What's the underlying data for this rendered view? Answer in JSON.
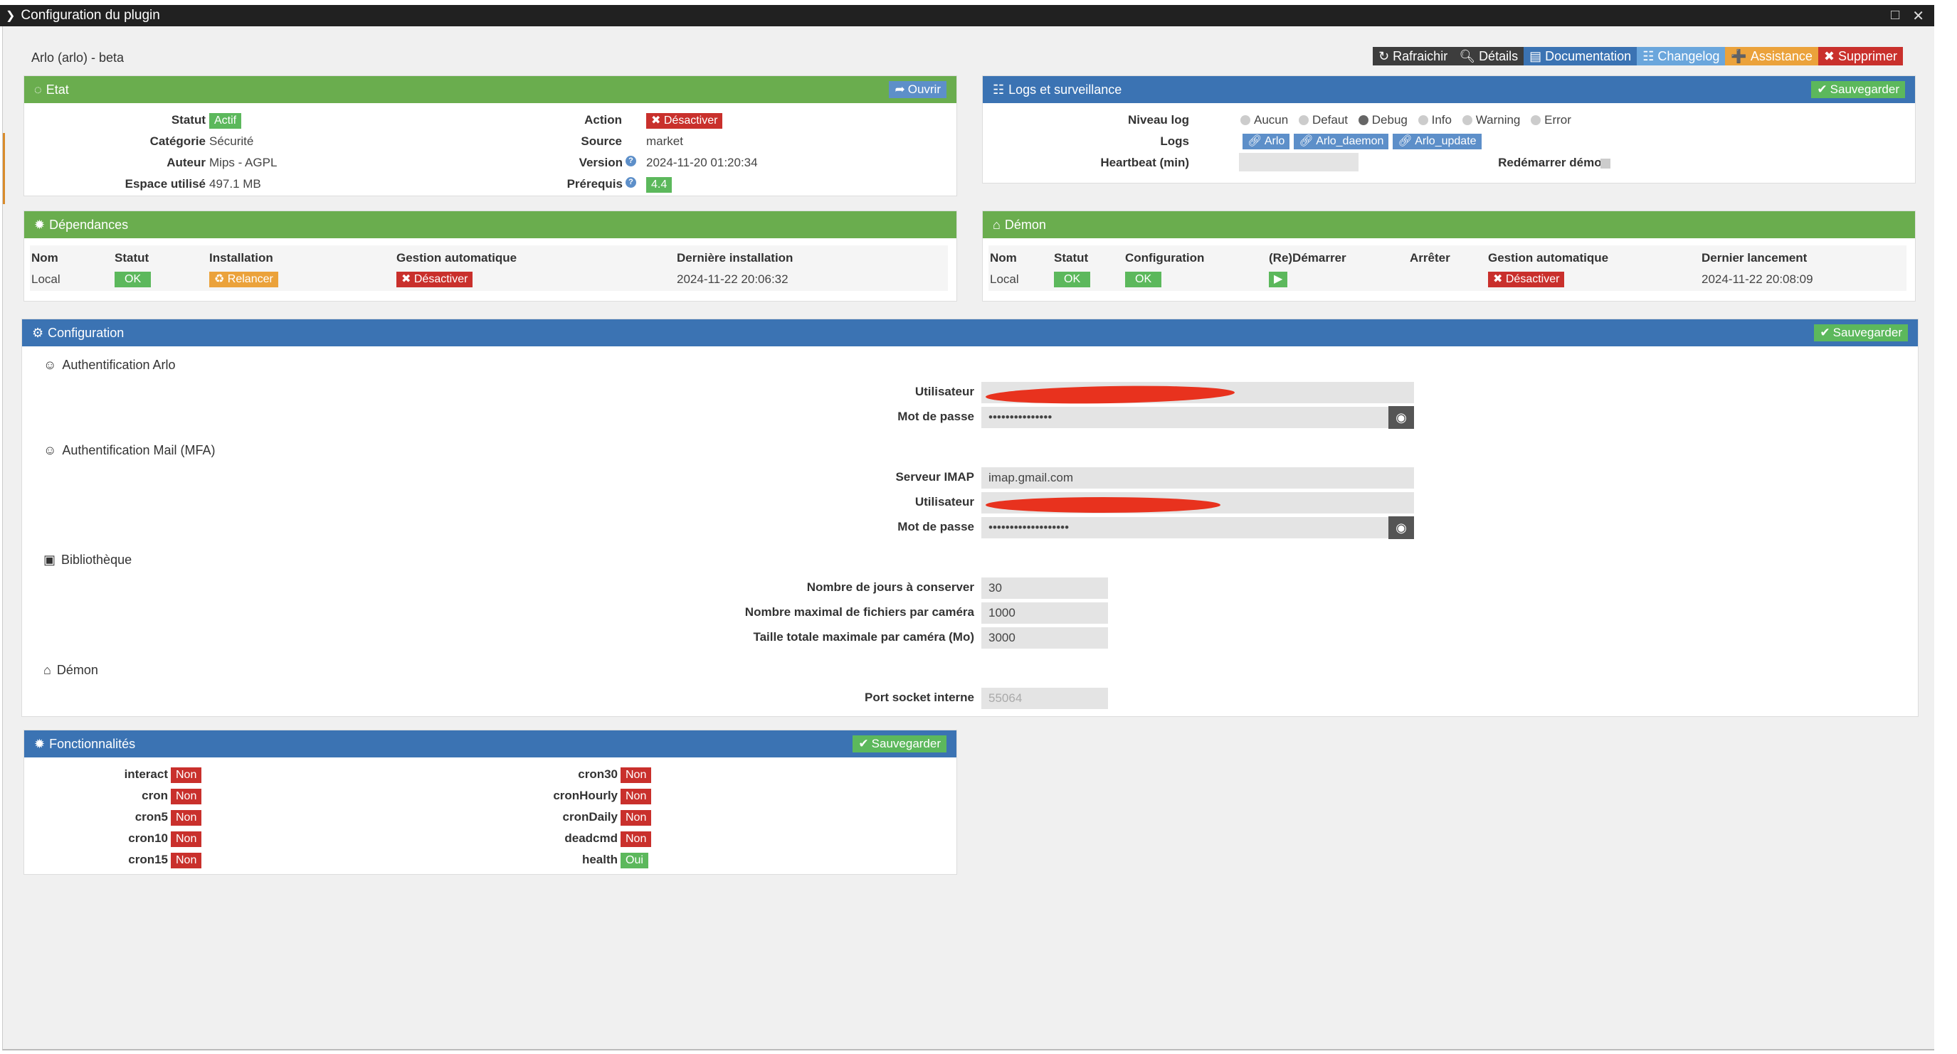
{
  "window": {
    "title": "Configuration du plugin"
  },
  "plugin": {
    "name": "Arlo (arlo) - beta"
  },
  "actions": {
    "refresh": "Rafraichir",
    "details": "Détails",
    "documentation": "Documentation",
    "changelog": "Changelog",
    "assistance": "Assistance",
    "delete": "Supprimer"
  },
  "etat": {
    "title": "Etat",
    "open_label": "Ouvrir",
    "statut_label": "Statut",
    "statut_value": "Actif",
    "categorie_label": "Catégorie",
    "categorie_value": "Sécurité",
    "auteur_label": "Auteur",
    "auteur_value": "Mips - AGPL",
    "espace_label": "Espace utilisé",
    "espace_value": "497.1 MB",
    "action_label": "Action",
    "action_value": "Désactiver",
    "source_label": "Source",
    "source_value": "market",
    "version_label": "Version",
    "version_value": "2024-11-20 01:20:34",
    "prerequis_label": "Prérequis",
    "prerequis_value": "4.4"
  },
  "logs": {
    "title": "Logs et surveillance",
    "save_label": "Sauvegarder",
    "niveau_label": "Niveau log",
    "levels": [
      "Aucun",
      "Defaut",
      "Debug",
      "Info",
      "Warning",
      "Error"
    ],
    "selected_level": "Debug",
    "logs_label": "Logs",
    "log_buttons": [
      "Arlo",
      "Arlo_daemon",
      "Arlo_update"
    ],
    "heartbeat_label": "Heartbeat (min)",
    "heartbeat_value": "",
    "restart_label": "Redémarrer démon"
  },
  "dependances": {
    "title": "Dépendances",
    "headers": [
      "Nom",
      "Statut",
      "Installation",
      "Gestion automatique",
      "Dernière installation"
    ],
    "row": {
      "nom": "Local",
      "statut": "OK",
      "installation": "Relancer",
      "gestion": "Désactiver",
      "derniere": "2024-11-22 20:06:32"
    }
  },
  "demon": {
    "title": "Démon",
    "headers": [
      "Nom",
      "Statut",
      "Configuration",
      "(Re)Démarrer",
      "Arrêter",
      "Gestion automatique",
      "Dernier lancement"
    ],
    "row": {
      "nom": "Local",
      "statut": "OK",
      "configuration": "OK",
      "gestion": "Désactiver",
      "dernier": "2024-11-22 20:08:09"
    }
  },
  "configuration": {
    "title": "Configuration",
    "save_label": "Sauvegarder",
    "auth_arlo": {
      "title": "Authentification Arlo",
      "user_label": "Utilisateur",
      "user_value": "",
      "password_label": "Mot de passe",
      "password_value": "•••••••••••••••"
    },
    "auth_mail": {
      "title": "Authentification Mail (MFA)",
      "imap_label": "Serveur IMAP",
      "imap_value": "imap.gmail.com",
      "user_label": "Utilisateur",
      "user_value": "",
      "password_label": "Mot de passe",
      "password_value": "•••••••••••••••••••"
    },
    "bibliotheque": {
      "title": "Bibliothèque",
      "days_label": "Nombre de jours à conserver",
      "days_value": "30",
      "max_files_label": "Nombre maximal de fichiers par caméra",
      "max_files_value": "1000",
      "max_size_label": "Taille totale maximale par caméra (Mo)",
      "max_size_value": "3000"
    },
    "demon": {
      "title": "Démon",
      "port_label": "Port socket interne",
      "port_placeholder": "55064"
    }
  },
  "fonctionnalites": {
    "title": "Fonctionnalités",
    "save_label": "Sauvegarder",
    "left": [
      {
        "name": "interact",
        "value": "Non"
      },
      {
        "name": "cron",
        "value": "Non"
      },
      {
        "name": "cron5",
        "value": "Non"
      },
      {
        "name": "cron10",
        "value": "Non"
      },
      {
        "name": "cron15",
        "value": "Non"
      }
    ],
    "right": [
      {
        "name": "cron30",
        "value": "Non"
      },
      {
        "name": "cronHourly",
        "value": "Non"
      },
      {
        "name": "cronDaily",
        "value": "Non"
      },
      {
        "name": "deadcmd",
        "value": "Non"
      },
      {
        "name": "health",
        "value": "Oui"
      }
    ]
  },
  "colors": {
    "green": "#6aad4e",
    "blue": "#3b73b3",
    "red": "#c9302c",
    "orange": "#eba23b"
  }
}
